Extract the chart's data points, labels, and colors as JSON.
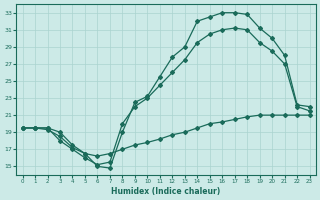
{
  "xlabel": "Humidex (Indice chaleur)",
  "ylabel": "",
  "bg_color": "#cceae7",
  "grid_color": "#aad4d0",
  "line_color": "#1a6b5a",
  "xlim": [
    -0.5,
    23.5
  ],
  "ylim": [
    14,
    34
  ],
  "xticks": [
    0,
    1,
    2,
    3,
    4,
    5,
    6,
    7,
    8,
    9,
    10,
    11,
    12,
    13,
    14,
    15,
    16,
    17,
    18,
    19,
    20,
    21,
    22,
    23
  ],
  "yticks": [
    15,
    17,
    19,
    21,
    23,
    25,
    27,
    29,
    31,
    33
  ],
  "curve_top_x": [
    0,
    1,
    2,
    3,
    4,
    5,
    6,
    7,
    8,
    9,
    10,
    11,
    12,
    13,
    14,
    15,
    16,
    17,
    18,
    19,
    20,
    21,
    22,
    23
  ],
  "curve_top_y": [
    19.5,
    19.5,
    19.5,
    19.0,
    17.5,
    16.5,
    15.0,
    14.8,
    19.0,
    22.5,
    23.2,
    25.5,
    27.8,
    29.0,
    32.0,
    32.5,
    33.0,
    33.0,
    32.8,
    31.2,
    30.0,
    28.0,
    22.2,
    22.0
  ],
  "curve_mid_x": [
    0,
    1,
    2,
    3,
    4,
    5,
    6,
    7,
    8,
    9,
    10,
    11,
    12,
    13,
    14,
    15,
    16,
    17,
    18,
    19,
    20,
    21,
    22,
    23
  ],
  "curve_mid_y": [
    19.5,
    19.5,
    19.5,
    18.0,
    17.0,
    16.0,
    15.2,
    15.5,
    20.0,
    22.0,
    23.0,
    24.5,
    26.0,
    27.5,
    29.5,
    30.5,
    31.0,
    31.2,
    31.0,
    29.5,
    28.5,
    27.0,
    22.0,
    21.5
  ],
  "curve_bot_x": [
    0,
    1,
    2,
    3,
    4,
    5,
    6,
    7,
    8,
    9,
    10,
    11,
    12,
    13,
    14,
    15,
    16,
    17,
    18,
    19,
    20,
    21,
    22,
    23
  ],
  "curve_bot_y": [
    19.5,
    19.5,
    19.3,
    18.5,
    17.2,
    16.5,
    16.2,
    16.5,
    17.0,
    17.5,
    17.8,
    18.2,
    18.7,
    19.0,
    19.5,
    20.0,
    20.2,
    20.5,
    20.8,
    21.0,
    21.0,
    21.0,
    21.0,
    21.0
  ]
}
